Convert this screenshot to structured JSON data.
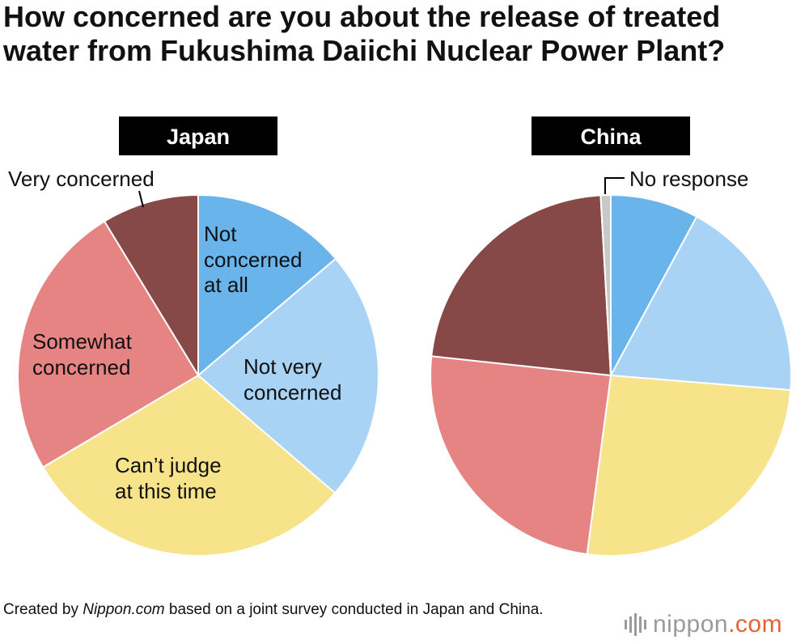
{
  "title_line1": "How concerned are you about the release of treated",
  "title_line2": "water from Fukushima Daiichi Nuclear Power Plant?",
  "chart_data": [
    {
      "type": "pie",
      "title": "Japan",
      "slices": [
        {
          "label": "Not concerned at all",
          "value": 13.8,
          "color": "#6ab4ec"
        },
        {
          "label": "Not very concerned",
          "value": 22.5,
          "color": "#a9d3f5"
        },
        {
          "label": "Can’t judge at this time",
          "value": 30.2,
          "color": "#f7e38a"
        },
        {
          "label": "Somewhat concerned",
          "value": 24.8,
          "color": "#e68484"
        },
        {
          "label": "Very concerned",
          "value": 8.7,
          "color": "#874848"
        }
      ]
    },
    {
      "type": "pie",
      "title": "China",
      "slices": [
        {
          "label": "Not concerned at all",
          "value": 7.9,
          "color": "#6ab4ec"
        },
        {
          "label": "Not very concerned",
          "value": 18.4,
          "color": "#a9d3f5"
        },
        {
          "label": "Can’t judge at this time",
          "value": 25.8,
          "color": "#f7e38a"
        },
        {
          "label": "Somewhat concerned",
          "value": 24.6,
          "color": "#e68484"
        },
        {
          "label": "Very concerned",
          "value": 22.4,
          "color": "#874848"
        },
        {
          "label": "No response",
          "value": 0.9,
          "color": "#c8c8c8"
        }
      ]
    }
  ],
  "labels": {
    "japan": {
      "not_concerned": [
        "Not",
        "concerned",
        "at all"
      ],
      "not_very": [
        "Not very",
        "concerned"
      ],
      "cant_judge": [
        "Can’t judge",
        "at this time"
      ],
      "somewhat": [
        "Somewhat",
        "concerned"
      ],
      "very": "Very concerned"
    },
    "china": {
      "no_response": "No response"
    }
  },
  "footer": {
    "prefix": "Created by ",
    "source": "Nippon.com",
    "suffix": " based on a joint survey conducted in Japan and China."
  },
  "brand": {
    "name": "nippon",
    "tld": ".com"
  }
}
